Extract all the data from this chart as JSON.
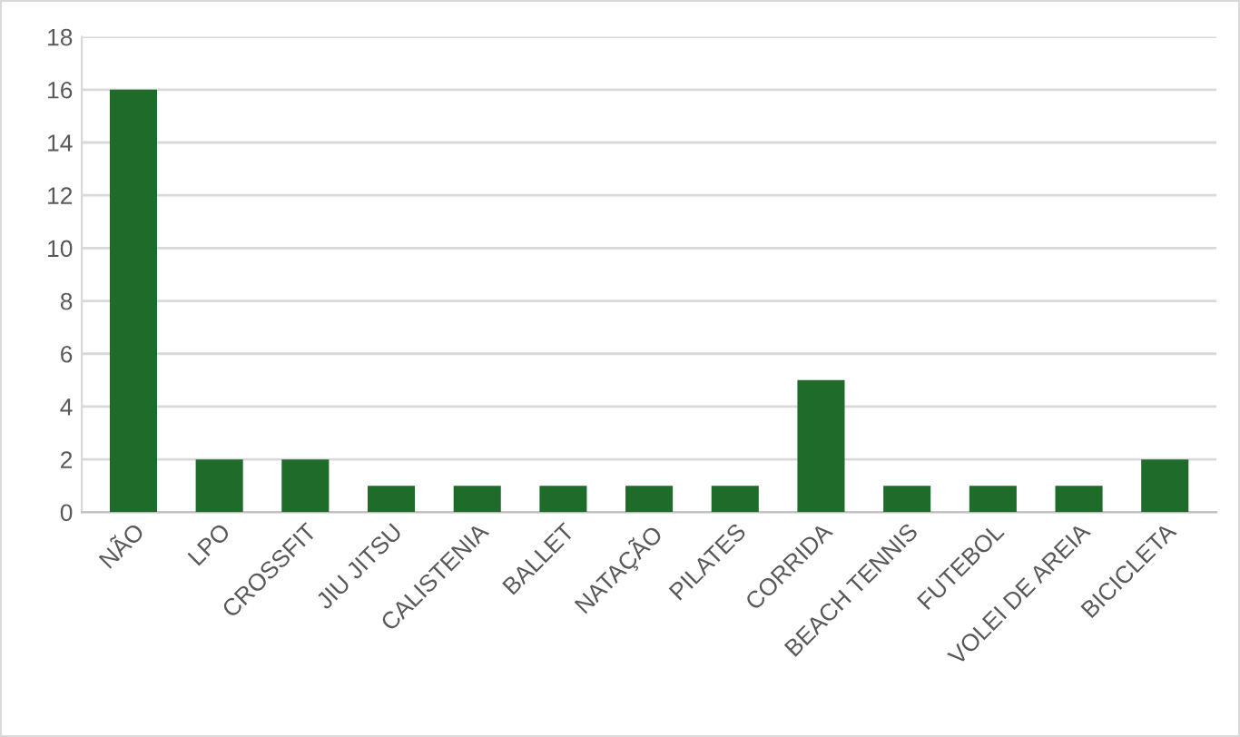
{
  "chart_data": {
    "type": "bar",
    "categories": [
      "NÃO",
      "LPO",
      "CROSSFIT",
      "JIU JITSU",
      "CALISTENIA",
      "BALLET",
      "NATAÇÃO",
      "PILATES",
      "CORRIDA",
      "BEACH TENNIS",
      "FUTEBOL",
      "VOLEI DE AREIA",
      "BICICLETA"
    ],
    "values": [
      16,
      2,
      2,
      1,
      1,
      1,
      1,
      1,
      5,
      1,
      1,
      1,
      2
    ],
    "color": "#1e6b2a",
    "ylim": [
      0,
      18
    ],
    "yticks": [
      0,
      2,
      4,
      6,
      8,
      10,
      12,
      14,
      16,
      18
    ],
    "grid": "y",
    "legend": false
  }
}
